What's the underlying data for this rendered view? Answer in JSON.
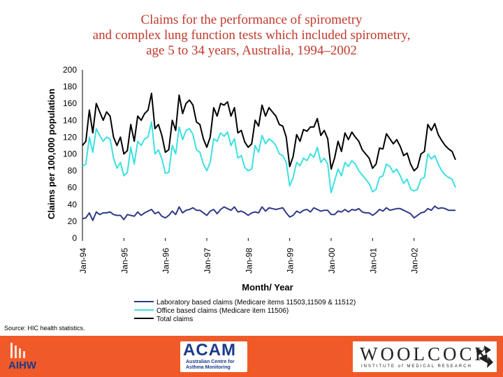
{
  "title_lines": [
    "Claims for the performance of spirometry",
    "and complex lung function tests which included spirometry,",
    "age 5 to 34 years, Australia, 1994–2002"
  ],
  "source_note": "Source: HIC health statistics.",
  "logos": {
    "aihw": "AIHW",
    "acam": "ACAM",
    "acam_sub": "Australian Centre for Asthma Monitoring",
    "woolcock": "WOOLCOCK",
    "woolcock_sub": "INSTITUTE of MEDICAL RESEARCH"
  },
  "colors": {
    "footer": "#f05a28",
    "title": "#c0392b",
    "lab": "#2e3a87",
    "office": "#3de0e0",
    "total": "#000000"
  },
  "chart_data": {
    "type": "line",
    "ylabel": "Claims per 100,000 population",
    "xlabel": "Month/ Year",
    "ylim": [
      0,
      200
    ],
    "yticks": [
      0,
      20,
      40,
      60,
      80,
      100,
      120,
      140,
      160,
      180,
      200
    ],
    "xlim": [
      0,
      108
    ],
    "x_tick_labels": [
      "Jan-94",
      "Jan-95",
      "Jan-96",
      "Jan-97",
      "Jan-98",
      "Jan-99",
      "Jan-00",
      "Jan-01",
      "Jan-02"
    ],
    "series": [
      {
        "name": "Laboratory based claims (Medicare items 11503,11509 & 11512)",
        "color": "#2e3a87",
        "values": [
          23,
          24,
          30,
          21,
          31,
          28,
          30,
          30,
          31,
          28,
          27,
          27,
          22,
          28,
          27,
          26,
          31,
          27,
          30,
          32,
          34,
          29,
          31,
          26,
          24,
          27,
          32,
          28,
          37,
          30,
          33,
          34,
          36,
          33,
          33,
          30,
          27,
          32,
          34,
          29,
          34,
          37,
          35,
          33,
          37,
          31,
          32,
          30,
          27,
          30,
          31,
          30,
          37,
          32,
          36,
          35,
          34,
          35,
          36,
          30,
          25,
          27,
          32,
          30,
          33,
          34,
          31,
          36,
          34,
          32,
          33,
          33,
          28,
          28,
          32,
          31,
          34,
          31,
          34,
          33,
          35,
          31,
          30,
          30,
          27,
          30,
          34,
          32,
          36,
          33,
          34,
          35,
          35,
          33,
          31,
          29,
          24,
          27,
          30,
          31,
          35,
          33,
          38,
          35,
          36,
          35,
          33,
          33,
          33
        ]
      },
      {
        "name": "Office based claims (Medicare item 11506)",
        "color": "#3de0e0",
        "values": [
          85,
          88,
          120,
          102,
          130,
          122,
          115,
          120,
          118,
          95,
          83,
          90,
          74,
          78,
          108,
          88,
          115,
          110,
          118,
          120,
          138,
          100,
          105,
          94,
          77,
          78,
          110,
          100,
          132,
          117,
          128,
          130,
          123,
          105,
          102,
          88,
          80,
          90,
          118,
          115,
          125,
          121,
          126,
          110,
          118,
          95,
          98,
          84,
          80,
          82,
          110,
          102,
          122,
          112,
          118,
          115,
          110,
          100,
          98,
          90,
          62,
          72,
          90,
          86,
          95,
          92,
          100,
          96,
          108,
          90,
          95,
          88,
          54,
          68,
          82,
          74,
          90,
          85,
          92,
          88,
          80,
          75,
          70,
          65,
          55,
          58,
          72,
          74,
          88,
          85,
          78,
          82,
          74,
          65,
          70,
          58,
          56,
          58,
          70,
          72,
          100,
          94,
          98,
          88,
          80,
          75,
          72,
          70,
          60
        ]
      },
      {
        "name": "Total claims",
        "color": "#000000",
        "values": [
          110,
          115,
          152,
          125,
          160,
          150,
          140,
          150,
          145,
          120,
          110,
          120,
          100,
          104,
          135,
          115,
          145,
          140,
          148,
          152,
          172,
          130,
          135,
          122,
          102,
          105,
          140,
          128,
          170,
          148,
          160,
          164,
          158,
          138,
          135,
          118,
          108,
          120,
          155,
          145,
          160,
          158,
          162,
          145,
          155,
          125,
          128,
          114,
          108,
          112,
          140,
          133,
          158,
          145,
          155,
          150,
          145,
          135,
          133,
          120,
          85,
          97,
          123,
          115,
          129,
          127,
          132,
          132,
          142,
          122,
          128,
          118,
          82,
          95,
          115,
          103,
          125,
          117,
          126,
          120,
          115,
          105,
          100,
          95,
          83,
          88,
          107,
          106,
          124,
          118,
          112,
          117,
          109,
          98,
          101,
          88,
          80,
          84,
          100,
          103,
          135,
          128,
          136,
          123,
          116,
          110,
          106,
          103,
          93
        ]
      }
    ]
  }
}
